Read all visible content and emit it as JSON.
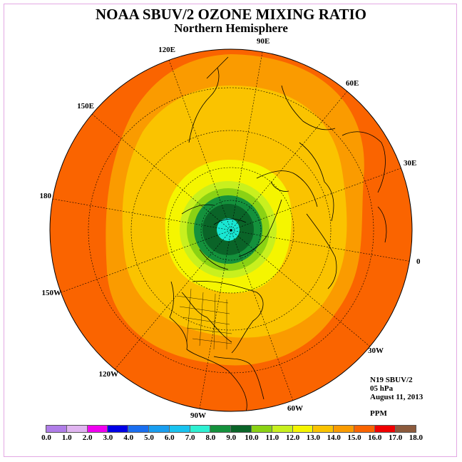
{
  "title": "NOAA SBUV/2 OZONE MIXING RATIO",
  "subtitle": "Northern Hemisphere",
  "info": {
    "instrument": "N19 SBUV/2",
    "level": "05 hPa",
    "date": "August 11, 2013",
    "units": "PPM"
  },
  "longitude_labels": [
    "0",
    "30E",
    "60E",
    "90E",
    "120E",
    "150E",
    "180",
    "150W",
    "120W",
    "90W",
    "60W",
    "30W"
  ],
  "colorbar": {
    "ticks": [
      "0.0",
      "1.0",
      "2.0",
      "3.0",
      "4.0",
      "5.0",
      "6.0",
      "7.0",
      "8.0",
      "9.0",
      "10.0",
      "11.0",
      "12.0",
      "13.0",
      "14.0",
      "15.0",
      "16.0",
      "17.0",
      "18.0"
    ],
    "colors": [
      "#b07de8",
      "#e0b4f0",
      "#f000f0",
      "#0000e6",
      "#1a6ef0",
      "#199ef0",
      "#19c3f0",
      "#2ef0d2",
      "#14913c",
      "#0a6428",
      "#8ad214",
      "#c8f01e",
      "#f5f500",
      "#fac300",
      "#fa9b00",
      "#fa6400",
      "#f00000",
      "#8c5a3c"
    ]
  },
  "map": {
    "projection": "north polar stereographic",
    "field": "ozone mixing ratio",
    "contour_levels_shown": [
      "9.0",
      "10.0",
      "11.0",
      "12.0",
      "13.0",
      "14.0",
      "15.0"
    ],
    "band_colors": {
      "core": "#19e6d2",
      "10": "#0a6428",
      "9": "#14913c",
      "11": "#8ad214",
      "12": "#c8f01e",
      "13": "#f5f500",
      "14": "#fac300",
      "15": "#fa9b00",
      "16": "#fa6400"
    }
  }
}
